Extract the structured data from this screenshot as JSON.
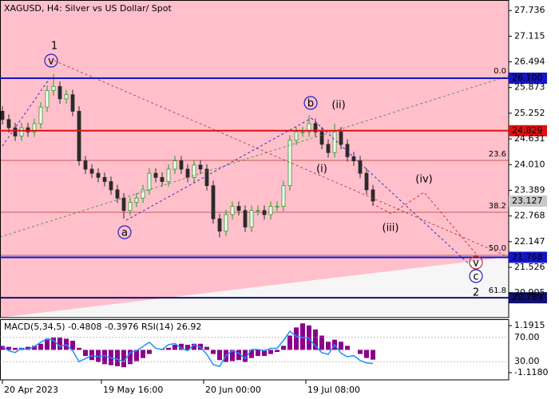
{
  "chart_data": [
    {
      "type": "candlestick",
      "title": "XAGUSD, H4:  Silver vs US Dollar/ Spot",
      "open": [
        25.3,
        25.1,
        24.9,
        24.7,
        24.9,
        24.8,
        25.0,
        25.4,
        25.8,
        25.9,
        25.6,
        25.7,
        25.3,
        24.1,
        23.9,
        23.8,
        23.7,
        23.6,
        23.4,
        23.2,
        22.9,
        23.1,
        23.2,
        23.4,
        23.8,
        23.7,
        23.6,
        23.9,
        24.1,
        23.9,
        23.7,
        24.0,
        23.9,
        23.5,
        22.7,
        22.4,
        22.8,
        23.0,
        22.9,
        22.5,
        22.9,
        22.9,
        22.8,
        23.0,
        23.0,
        23.5,
        24.6,
        24.8,
        24.8,
        25.0,
        24.8,
        24.5,
        24.3,
        24.8,
        24.5,
        24.2,
        24.1,
        23.8,
        23.4
      ],
      "high": [
        25.42,
        25.22,
        25.02,
        25.02,
        25.02,
        25.12,
        25.52,
        25.92,
        26.2,
        26.02,
        25.82,
        25.82,
        25.42,
        24.22,
        24.02,
        23.92,
        23.82,
        23.72,
        23.52,
        23.32,
        23.22,
        23.32,
        23.52,
        23.92,
        23.92,
        23.82,
        24.02,
        24.22,
        24.22,
        24.02,
        24.12,
        24.12,
        24.02,
        23.62,
        22.82,
        22.92,
        23.12,
        23.12,
        23.02,
        23.02,
        23.02,
        23.02,
        23.12,
        23.12,
        23.62,
        24.72,
        24.92,
        24.92,
        25.2,
        25.12,
        24.92,
        24.62,
        25.0,
        24.92,
        24.62,
        24.32,
        24.22,
        23.92,
        23.52
      ],
      "low": [
        24.98,
        24.78,
        24.58,
        24.58,
        24.68,
        24.68,
        24.88,
        25.28,
        25.68,
        25.48,
        25.48,
        25.18,
        23.98,
        23.78,
        23.68,
        23.58,
        23.48,
        23.28,
        23.08,
        22.7,
        22.78,
        22.98,
        23.08,
        23.28,
        23.58,
        23.48,
        23.48,
        23.78,
        23.78,
        23.58,
        23.58,
        23.78,
        23.38,
        22.58,
        22.25,
        22.28,
        22.68,
        22.78,
        22.38,
        22.38,
        22.78,
        22.68,
        22.68,
        22.88,
        22.88,
        23.38,
        24.48,
        24.68,
        24.68,
        24.68,
        24.38,
        24.18,
        24.18,
        24.38,
        24.08,
        23.98,
        23.68,
        23.28,
        23.01
      ],
      "close": [
        25.1,
        24.9,
        24.7,
        24.9,
        24.8,
        25.0,
        25.4,
        25.8,
        25.9,
        25.6,
        25.7,
        25.3,
        24.1,
        23.9,
        23.8,
        23.7,
        23.6,
        23.4,
        23.2,
        22.9,
        23.1,
        23.2,
        23.4,
        23.8,
        23.7,
        23.6,
        23.9,
        24.1,
        23.9,
        23.7,
        24.0,
        23.9,
        23.5,
        22.7,
        22.4,
        22.8,
        23.0,
        22.9,
        22.5,
        22.9,
        22.9,
        22.8,
        23.0,
        23.0,
        23.5,
        24.6,
        24.8,
        24.8,
        25.0,
        24.8,
        24.5,
        24.3,
        24.8,
        24.5,
        24.2,
        24.1,
        23.8,
        23.4,
        23.127
      ],
      "up_color": "#1f9e1f",
      "down_color": "#2b2b2b",
      "background": "#ffc0cb",
      "ylim": [
        20.31,
        27.99
      ],
      "yticks": [
        27.736,
        27.115,
        26.494,
        25.873,
        25.252,
        24.631,
        {
          "value": 24.01,
          "label": "24.010"
        },
        23.389,
        22.768,
        22.147,
        21.526,
        20.905
      ],
      "xlim": [
        0,
        79
      ],
      "xticks": [
        {
          "value": 0,
          "label": "20 Apr 2023"
        },
        {
          "value": 15.5,
          "label": "19 May 16:00"
        },
        {
          "value": 31.5,
          "label": "20 Jun 00:00"
        },
        {
          "value": 47.5,
          "label": "19 Jul 08:00"
        }
      ],
      "hlines": [
        {
          "value": 26.1,
          "label": "26.100",
          "color": "#1414c8"
        },
        {
          "value": 24.829,
          "label": "24.829",
          "color": "#e01010"
        },
        {
          "value": 21.768,
          "label": "21.768",
          "color": "#1414c8"
        },
        {
          "value": 20.789,
          "label": "20.789",
          "color": "#10106e"
        }
      ],
      "fib_labels": [
        "0.0",
        "23.6",
        "38.2",
        "50.0",
        "61.8"
      ],
      "wave_labels": [
        "1",
        "v",
        "a",
        "b",
        "(ii)",
        "(i)",
        "(iv)",
        "(iii)",
        "v",
        "c",
        "2"
      ]
    },
    {
      "type": "macd_rsi",
      "title": "MACD(5,34,5) -0.4808 -0.3976 RSI(14) 26.92",
      "ylim": [
        -1.47,
        1.5046
      ],
      "yticks": [
        1.1915,
        {
          "value": -1.118,
          "label": "-1.1180"
        }
      ],
      "y2lim": [
        0,
        100
      ],
      "y2ticks": [
        {
          "value": 70,
          "label": "70.00"
        },
        {
          "value": 30,
          "label": "30.00"
        }
      ],
      "series": [
        {
          "color": "#8b008b",
          "values": [
            0.2,
            0.15,
            0.1,
            0.1,
            0.15,
            0.2,
            0.3,
            0.5,
            0.6,
            0.6,
            0.55,
            0.45,
            0.1,
            -0.3,
            -0.5,
            -0.6,
            -0.7,
            -0.75,
            -0.8,
            -0.85,
            -0.7,
            -0.55,
            -0.4,
            -0.2,
            0.0,
            0.05,
            0.1,
            0.25,
            0.3,
            0.25,
            0.3,
            0.3,
            0.15,
            -0.2,
            -0.5,
            -0.6,
            -0.55,
            -0.5,
            -0.6,
            -0.4,
            -0.3,
            -0.3,
            -0.2,
            -0.1,
            0.2,
            0.7,
            1.1,
            1.3,
            1.2,
            1.0,
            0.7,
            0.4,
            0.5,
            0.4,
            0.2,
            0.0,
            -0.2,
            -0.4,
            -0.4808
          ]
        },
        {
          "color": "#1e90ff",
          "axis": "y2",
          "values": [
            55,
            48,
            45,
            52,
            50,
            55,
            62,
            68,
            65,
            55,
            58,
            48,
            30,
            35,
            40,
            38,
            40,
            36,
            34,
            30,
            45,
            48,
            55,
            62,
            52,
            50,
            58,
            60,
            52,
            48,
            58,
            54,
            42,
            25,
            22,
            40,
            48,
            44,
            35,
            50,
            50,
            48,
            52,
            52,
            65,
            80,
            72,
            70,
            68,
            56,
            45,
            42,
            58,
            44,
            38,
            40,
            32,
            28,
            26.92
          ]
        }
      ]
    }
  ]
}
